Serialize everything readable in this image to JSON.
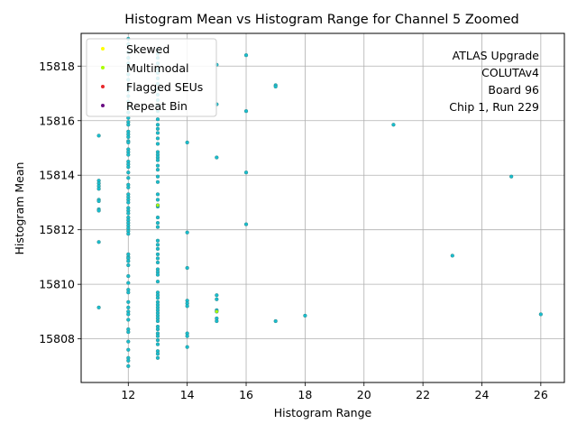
{
  "chart_data": {
    "type": "scatter",
    "title": "Histogram Mean vs Histogram Range for Channel 5 Zoomed",
    "xlabel": "Histogram Range",
    "ylabel": "Histogram Mean",
    "xlim": [
      10.4,
      26.8
    ],
    "ylim": [
      15806.4,
      15819.2
    ],
    "xticks": [
      12,
      14,
      16,
      18,
      20,
      22,
      24,
      26
    ],
    "yticks": [
      15808,
      15810,
      15812,
      15814,
      15816,
      15818
    ],
    "grid": true,
    "legend_position": "top-left",
    "annotation": [
      "ATLAS Upgrade",
      "COLUTAv4",
      "Board 96",
      "Chip 1, Run 229"
    ],
    "legend": [
      {
        "name": "Skewed",
        "color": "#ffff00"
      },
      {
        "name": "Multimodal",
        "color": "#aaff00"
      },
      {
        "name": "Flagged SEUs",
        "color": "#e8282b"
      },
      {
        "name": "Repeat Bin",
        "color": "#6a0d83"
      }
    ],
    "point_color": "#17becf",
    "point_edge": "#3a8a8a",
    "series": [
      {
        "name": "Normal",
        "color": "#17becf",
        "points": [
          [
            11,
            15815.45
          ],
          [
            11,
            15813.8
          ],
          [
            11,
            15813.7
          ],
          [
            11,
            15813.6
          ],
          [
            11,
            15813.5
          ],
          [
            11,
            15813.1
          ],
          [
            11,
            15813.05
          ],
          [
            11,
            15812.75
          ],
          [
            11,
            15812.7
          ],
          [
            11,
            15811.55
          ],
          [
            11,
            15809.15
          ],
          [
            12,
            15819.0
          ],
          [
            12,
            15818.8
          ],
          [
            12,
            15818.5
          ],
          [
            12,
            15818.3
          ],
          [
            12,
            15818.1
          ],
          [
            12,
            15817.9
          ],
          [
            12,
            15817.7
          ],
          [
            12,
            15817.5
          ],
          [
            12,
            15817.3
          ],
          [
            12,
            15817.1
          ],
          [
            12,
            15816.9
          ],
          [
            12,
            15816.7
          ],
          [
            12,
            15816.5
          ],
          [
            12,
            15816.3
          ],
          [
            12,
            15816.1
          ],
          [
            12,
            15815.95
          ],
          [
            12,
            15815.85
          ],
          [
            12,
            15815.6
          ],
          [
            12,
            15815.5
          ],
          [
            12,
            15815.4
          ],
          [
            12,
            15815.25
          ],
          [
            12,
            15815.2
          ],
          [
            12,
            15814.95
          ],
          [
            12,
            15814.85
          ],
          [
            12,
            15814.75
          ],
          [
            12,
            15814.5
          ],
          [
            12,
            15814.4
          ],
          [
            12,
            15814.3
          ],
          [
            12,
            15814.1
          ],
          [
            12,
            15813.9
          ],
          [
            12,
            15813.65
          ],
          [
            12,
            15813.55
          ],
          [
            12,
            15813.3
          ],
          [
            12,
            15813.2
          ],
          [
            12,
            15813.1
          ],
          [
            12,
            15813.0
          ],
          [
            12,
            15812.8
          ],
          [
            12,
            15812.7
          ],
          [
            12,
            15812.6
          ],
          [
            12,
            15812.45
          ],
          [
            12,
            15812.35
          ],
          [
            12,
            15812.25
          ],
          [
            12,
            15812.15
          ],
          [
            12,
            15812.05
          ],
          [
            12,
            15811.95
          ],
          [
            12,
            15811.85
          ],
          [
            12,
            15811.1
          ],
          [
            12,
            15811.0
          ],
          [
            12,
            15810.95
          ],
          [
            12,
            15810.85
          ],
          [
            12,
            15810.7
          ],
          [
            12,
            15810.3
          ],
          [
            12,
            15810.05
          ],
          [
            12,
            15809.8
          ],
          [
            12,
            15809.7
          ],
          [
            12,
            15809.35
          ],
          [
            12,
            15809.15
          ],
          [
            12,
            15809.0
          ],
          [
            12,
            15808.9
          ],
          [
            12,
            15808.7
          ],
          [
            12,
            15808.35
          ],
          [
            12,
            15808.25
          ],
          [
            12,
            15807.9
          ],
          [
            12,
            15807.6
          ],
          [
            12,
            15807.3
          ],
          [
            12,
            15807.2
          ],
          [
            12,
            15807.0
          ],
          [
            13,
            15818.6
          ],
          [
            13,
            15818.45
          ],
          [
            13,
            15818.3
          ],
          [
            13,
            15818.1
          ],
          [
            13,
            15817.9
          ],
          [
            13,
            15817.75
          ],
          [
            13,
            15817.55
          ],
          [
            13,
            15817.35
          ],
          [
            13,
            15817.15
          ],
          [
            13,
            15816.95
          ],
          [
            13,
            15816.75
          ],
          [
            13,
            15816.55
          ],
          [
            13,
            15816.35
          ],
          [
            13,
            15816.05
          ],
          [
            13,
            15815.85
          ],
          [
            13,
            15815.7
          ],
          [
            13,
            15815.55
          ],
          [
            13,
            15815.35
          ],
          [
            13,
            15815.15
          ],
          [
            13,
            15814.85
          ],
          [
            13,
            15814.75
          ],
          [
            13,
            15814.65
          ],
          [
            13,
            15814.55
          ],
          [
            13,
            15814.35
          ],
          [
            13,
            15814.2
          ],
          [
            13,
            15813.95
          ],
          [
            13,
            15813.75
          ],
          [
            13,
            15813.3
          ],
          [
            13,
            15813.1
          ],
          [
            13,
            15812.85
          ],
          [
            13,
            15812.45
          ],
          [
            13,
            15812.25
          ],
          [
            13,
            15812.1
          ],
          [
            13,
            15811.6
          ],
          [
            13,
            15811.45
          ],
          [
            13,
            15811.3
          ],
          [
            13,
            15811.1
          ],
          [
            13,
            15810.95
          ],
          [
            13,
            15810.8
          ],
          [
            13,
            15810.55
          ],
          [
            13,
            15810.45
          ],
          [
            13,
            15810.35
          ],
          [
            13,
            15810.1
          ],
          [
            13,
            15809.7
          ],
          [
            13,
            15809.6
          ],
          [
            13,
            15809.5
          ],
          [
            13,
            15809.35
          ],
          [
            13,
            15809.25
          ],
          [
            13,
            15809.15
          ],
          [
            13,
            15809.05
          ],
          [
            13,
            15808.95
          ],
          [
            13,
            15808.85
          ],
          [
            13,
            15808.75
          ],
          [
            13,
            15808.65
          ],
          [
            13,
            15808.45
          ],
          [
            13,
            15808.35
          ],
          [
            13,
            15808.2
          ],
          [
            13,
            15808.1
          ],
          [
            13,
            15807.95
          ],
          [
            13,
            15807.8
          ],
          [
            13,
            15807.55
          ],
          [
            13,
            15807.45
          ],
          [
            13,
            15807.3
          ],
          [
            14,
            15815.2
          ],
          [
            14,
            15811.9
          ],
          [
            14,
            15810.6
          ],
          [
            14,
            15809.4
          ],
          [
            14,
            15809.3
          ],
          [
            14,
            15809.2
          ],
          [
            14,
            15808.2
          ],
          [
            14,
            15808.1
          ],
          [
            14,
            15807.7
          ],
          [
            15,
            15818.05
          ],
          [
            15,
            15816.6
          ],
          [
            15,
            15814.65
          ],
          [
            15,
            15809.6
          ],
          [
            15,
            15809.45
          ],
          [
            15,
            15809.05
          ],
          [
            15,
            15808.75
          ],
          [
            15,
            15808.65
          ],
          [
            16,
            15818.4
          ],
          [
            16,
            15816.35
          ],
          [
            16,
            15814.1
          ],
          [
            16,
            15812.2
          ],
          [
            17,
            15817.3
          ],
          [
            17,
            15817.25
          ],
          [
            17,
            15808.65
          ],
          [
            18,
            15808.85
          ],
          [
            21,
            15815.85
          ],
          [
            23,
            15811.05
          ],
          [
            25,
            15813.95
          ],
          [
            26,
            15808.9
          ]
        ]
      },
      {
        "name": "Multimodal",
        "color": "#aaff00",
        "points": [
          [
            13,
            15812.9
          ],
          [
            15,
            15809.0
          ]
        ]
      }
    ]
  }
}
